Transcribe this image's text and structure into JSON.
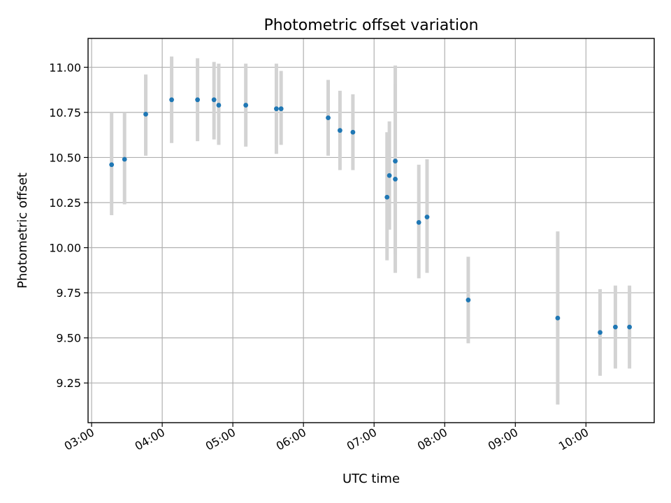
{
  "chart_data": {
    "type": "scatter",
    "title": "Photometric offset variation",
    "xlabel": "UTC time",
    "ylabel": "Photometric offset",
    "x_ticks": [
      "03:00",
      "04:00",
      "05:00",
      "06:00",
      "07:00",
      "08:00",
      "09:00",
      "10:00"
    ],
    "y_ticks": [
      "9.25",
      "9.50",
      "9.75",
      "10.00",
      "10.25",
      "10.50",
      "10.75",
      "11.00"
    ],
    "xlim": [
      "02:57",
      "10:58"
    ],
    "ylim": [
      9.03,
      11.16
    ],
    "grid": true,
    "colors": {
      "point": "#1f77b4",
      "errorbar": "#d3d3d3"
    },
    "points": [
      {
        "x": "03:17",
        "y": 10.46,
        "yerr_low": 10.18,
        "yerr_high": 10.75
      },
      {
        "x": "03:28",
        "y": 10.49,
        "yerr_low": 10.24,
        "yerr_high": 10.75
      },
      {
        "x": "03:46",
        "y": 10.74,
        "yerr_low": 10.51,
        "yerr_high": 10.96
      },
      {
        "x": "04:08",
        "y": 10.82,
        "yerr_low": 10.58,
        "yerr_high": 11.06
      },
      {
        "x": "04:30",
        "y": 10.82,
        "yerr_low": 10.59,
        "yerr_high": 11.05
      },
      {
        "x": "04:44",
        "y": 10.82,
        "yerr_low": 10.6,
        "yerr_high": 11.03
      },
      {
        "x": "04:48",
        "y": 10.79,
        "yerr_low": 10.57,
        "yerr_high": 11.02
      },
      {
        "x": "05:11",
        "y": 10.79,
        "yerr_low": 10.56,
        "yerr_high": 11.02
      },
      {
        "x": "05:37",
        "y": 10.77,
        "yerr_low": 10.52,
        "yerr_high": 11.02
      },
      {
        "x": "05:41",
        "y": 10.77,
        "yerr_low": 10.57,
        "yerr_high": 10.98
      },
      {
        "x": "06:21",
        "y": 10.72,
        "yerr_low": 10.51,
        "yerr_high": 10.93
      },
      {
        "x": "06:31",
        "y": 10.65,
        "yerr_low": 10.43,
        "yerr_high": 10.87
      },
      {
        "x": "06:42",
        "y": 10.64,
        "yerr_low": 10.43,
        "yerr_high": 10.85
      },
      {
        "x": "07:11",
        "y": 10.28,
        "yerr_low": 9.93,
        "yerr_high": 10.64
      },
      {
        "x": "07:13",
        "y": 10.4,
        "yerr_low": 10.1,
        "yerr_high": 10.7
      },
      {
        "x": "07:18",
        "y": 10.48,
        "yerr_low": 9.96,
        "yerr_high": 11.01
      },
      {
        "x": "07:18",
        "y": 10.38,
        "yerr_low": 9.86,
        "yerr_high": 10.91
      },
      {
        "x": "07:38",
        "y": 10.14,
        "yerr_low": 9.83,
        "yerr_high": 10.46
      },
      {
        "x": "07:45",
        "y": 10.17,
        "yerr_low": 9.86,
        "yerr_high": 10.49
      },
      {
        "x": "08:20",
        "y": 9.71,
        "yerr_low": 9.47,
        "yerr_high": 9.95
      },
      {
        "x": "09:36",
        "y": 9.61,
        "yerr_low": 9.13,
        "yerr_high": 10.09
      },
      {
        "x": "10:12",
        "y": 9.53,
        "yerr_low": 9.29,
        "yerr_high": 9.77
      },
      {
        "x": "10:25",
        "y": 9.56,
        "yerr_low": 9.33,
        "yerr_high": 9.79
      },
      {
        "x": "10:37",
        "y": 9.56,
        "yerr_low": 9.33,
        "yerr_high": 9.79
      }
    ]
  }
}
